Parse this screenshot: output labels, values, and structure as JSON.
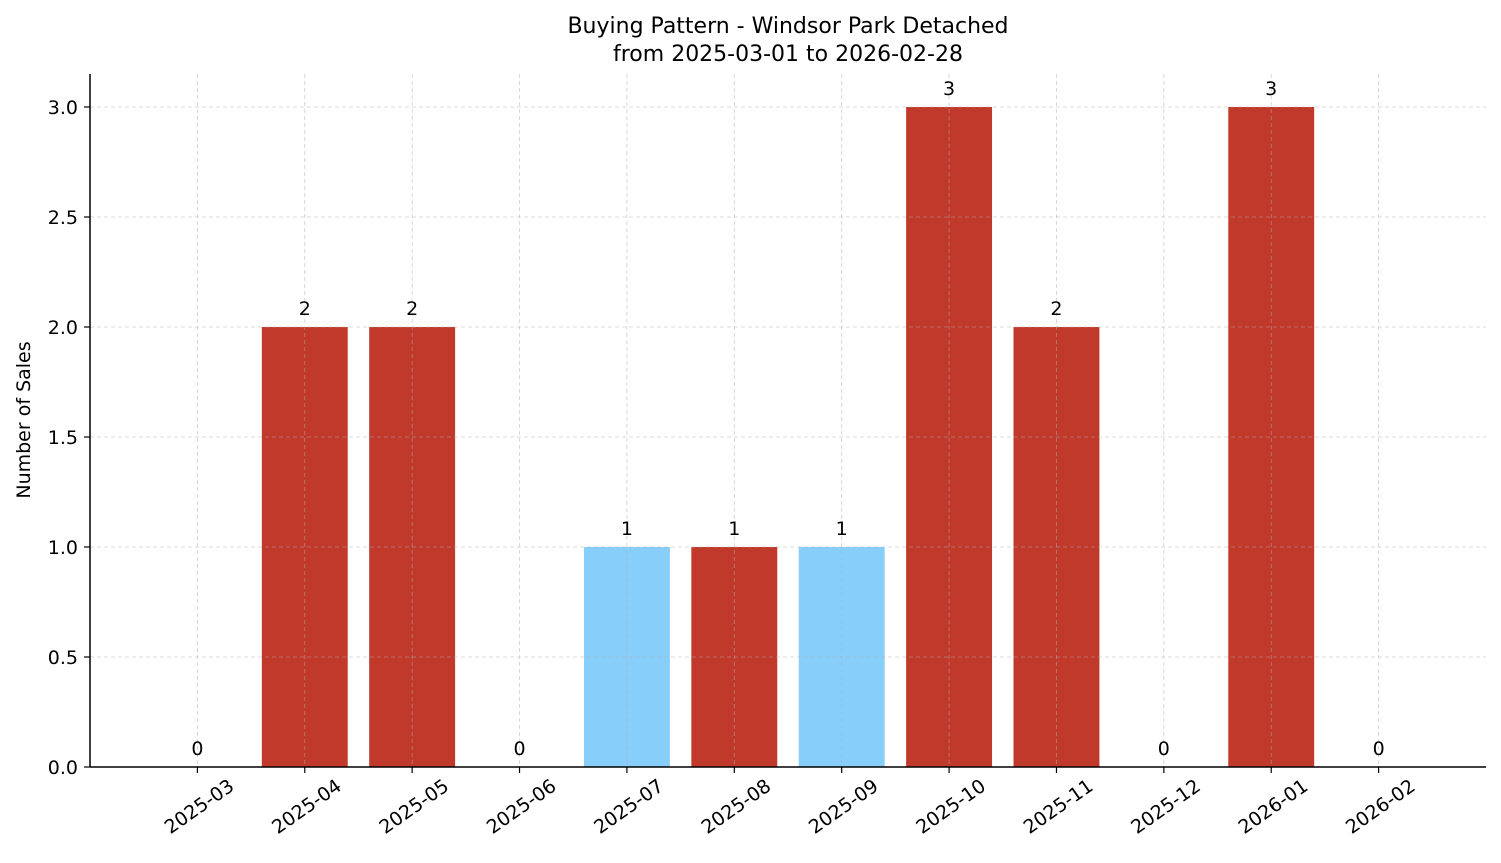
{
  "chart_data": {
    "type": "bar",
    "title": "Buying Pattern - Windsor Park Detached",
    "subtitle": "from 2025-03-01 to 2026-02-28",
    "xlabel": "",
    "ylabel": "Number of Sales",
    "categories": [
      "2025-03",
      "2025-04",
      "2025-05",
      "2025-06",
      "2025-07",
      "2025-08",
      "2025-09",
      "2025-10",
      "2025-11",
      "2025-12",
      "2026-01",
      "2026-02"
    ],
    "values": [
      0,
      2,
      2,
      0,
      1,
      1,
      1,
      3,
      2,
      0,
      3,
      0
    ],
    "bar_colors": [
      "#c0392b",
      "#c0392b",
      "#c0392b",
      "#c0392b",
      "#87cefa",
      "#c0392b",
      "#87cefa",
      "#c0392b",
      "#c0392b",
      "#c0392b",
      "#c0392b",
      "#c0392b"
    ],
    "yticks": [
      "0.0",
      "0.5",
      "1.0",
      "1.5",
      "2.0",
      "2.5",
      "3.0"
    ],
    "ylim": [
      0,
      3.15
    ],
    "grid": true,
    "data_labels": true
  }
}
